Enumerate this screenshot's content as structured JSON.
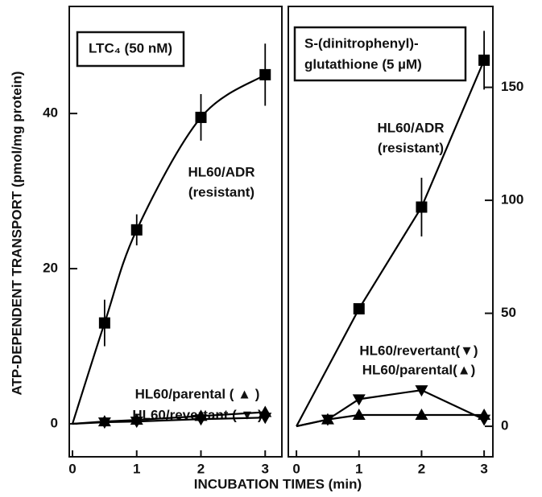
{
  "xlabel": "INCUBATION TIMES (min)",
  "ylabel": "ATP-DEPENDENT TRANSPORT  (pmol/mg protein)",
  "chart_data": [
    {
      "type": "line",
      "box_text": [
        "LTC₄ (50 nM)"
      ],
      "annotations": [
        "HL60/ADR",
        "(resistant)",
        "HL60/parental ( ▲ )",
        "HL60/revertant ( ▼ )"
      ],
      "xlim": [
        -0.05,
        3.26
      ],
      "xticks": [
        0,
        1,
        2,
        3
      ],
      "ylim": [
        -4.25,
        53.8
      ],
      "yticks": [
        0,
        20,
        40
      ],
      "yaxis_side": "left",
      "series": [
        {
          "name": "HL60/ADR (resistant)",
          "color": "#000000",
          "marker": "square",
          "smooth": true,
          "x": [
            0,
            0.5,
            1,
            2,
            3
          ],
          "values": [
            0,
            13,
            25,
            39.5,
            45
          ],
          "errors": [
            null,
            3,
            2,
            3,
            4
          ]
        },
        {
          "name": "HL60/parental",
          "color": "#000000",
          "marker": "triangle-up",
          "smooth": false,
          "x": [
            0,
            0.5,
            1,
            2,
            3
          ],
          "values": [
            0,
            0.3,
            0.5,
            1,
            1.5
          ]
        },
        {
          "name": "HL60/revertant",
          "color": "#000000",
          "marker": "triangle-down",
          "smooth": false,
          "x": [
            0,
            0.5,
            1,
            2,
            3
          ],
          "values": [
            0,
            0.2,
            0.3,
            0.6,
            0.8
          ]
        }
      ]
    },
    {
      "type": "line",
      "box_text": [
        "S-(dinitrophenyl)-",
        "glutathione (5 µM)"
      ],
      "annotations": [
        "HL60/ADR",
        "(resistant)",
        "HL60/revertant(▼)",
        "HL60/parental(▲)"
      ],
      "xlim": [
        -0.13,
        3.14
      ],
      "xticks": [
        0,
        1,
        2,
        3
      ],
      "ylim": [
        -13.5,
        185.8
      ],
      "yticks": [
        0,
        50,
        100,
        150
      ],
      "yaxis_side": "right",
      "series": [
        {
          "name": "HL60/ADR (resistant)",
          "color": "#000000",
          "marker": "square",
          "smooth": false,
          "x": [
            0,
            1,
            2,
            3
          ],
          "values": [
            0,
            52,
            97,
            162
          ],
          "errors": [
            null,
            1.5,
            13,
            13
          ]
        },
        {
          "name": "HL60/revertant",
          "color": "#000000",
          "marker": "triangle-down",
          "smooth": false,
          "x": [
            0,
            0.5,
            1,
            2,
            3
          ],
          "values": [
            0,
            3,
            12,
            16,
            3
          ]
        },
        {
          "name": "HL60/parental",
          "color": "#000000",
          "marker": "triangle-up",
          "smooth": false,
          "x": [
            0,
            0.5,
            1,
            2,
            3
          ],
          "values": [
            0,
            3,
            5,
            5,
            5
          ]
        }
      ]
    }
  ]
}
